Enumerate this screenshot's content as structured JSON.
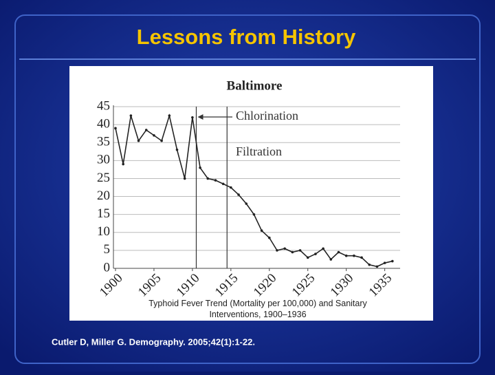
{
  "slide_title": "Lessons from History",
  "citation": "Cutler D, Miller G. Demography. 2005;42(1):1-22.",
  "chart_data": {
    "type": "line",
    "title": "Baltimore",
    "caption": "Typhoid Fever Trend (Mortality per 100,000) and Sanitary Interventions, 1900–1936",
    "x": [
      1900,
      1901,
      1902,
      1903,
      1904,
      1905,
      1906,
      1907,
      1908,
      1909,
      1910,
      1911,
      1912,
      1913,
      1914,
      1915,
      1916,
      1917,
      1918,
      1919,
      1920,
      1921,
      1922,
      1923,
      1924,
      1925,
      1926,
      1927,
      1928,
      1929,
      1930,
      1931,
      1932,
      1933,
      1934,
      1935,
      1936
    ],
    "series": [
      {
        "name": "Typhoid mortality",
        "color": "#222222",
        "values": [
          39,
          29,
          42.5,
          35.5,
          38.5,
          37,
          35.5,
          42.5,
          33,
          25,
          42,
          28,
          25,
          24.5,
          23.5,
          22.5,
          20.5,
          18,
          15,
          10.5,
          8.5,
          5,
          5.5,
          4.5,
          5,
          3,
          4,
          5.5,
          2.5,
          4.5,
          3.5,
          3.5,
          3,
          1,
          0.5,
          1.5,
          2
        ]
      }
    ],
    "annotations": [
      {
        "text": "Chlorination",
        "x": 1910.5
      },
      {
        "text": "Filtration",
        "x": 1914.5
      }
    ],
    "xlim": [
      1900,
      1937
    ],
    "xticks": [
      1900,
      1905,
      1910,
      1915,
      1920,
      1925,
      1930,
      1935
    ],
    "ylim": [
      0,
      45
    ],
    "yticks": [
      0,
      5,
      10,
      15,
      20,
      25,
      30,
      35,
      40,
      45
    ],
    "grid": true
  }
}
